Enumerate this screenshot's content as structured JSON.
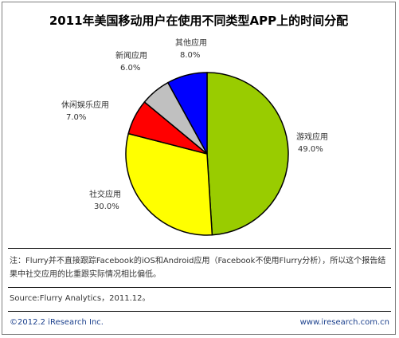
{
  "chart_data": {
    "type": "pie",
    "title": "2011年美国移动用户在使用不同类型APP上的时间分配",
    "categories": [
      "游戏应用",
      "社交应用",
      "休闲娱乐应用",
      "新闻应用",
      "其他应用"
    ],
    "values": [
      49.0,
      30.0,
      7.0,
      6.0,
      8.0
    ],
    "value_labels": [
      "49.0%",
      "30.0%",
      "7.0%",
      "6.0%",
      "8.0%"
    ],
    "colors": [
      "#99cc00",
      "#ffff00",
      "#ff0000",
      "#c0c0c0",
      "#0000ff"
    ],
    "unit": "%"
  },
  "note": "注：Flurry并不直接跟踪Facebook的iOS和Android应用（Facebook不使用Flurry分析），所以这个报告结果中社交应用的比重跟实际情况相比偏低。",
  "source": "Source:Flurry Analytics，2011.12。",
  "footer": {
    "copyright": "©2012.2 iResearch Inc.",
    "website": "www.iresearch.com.cn"
  }
}
